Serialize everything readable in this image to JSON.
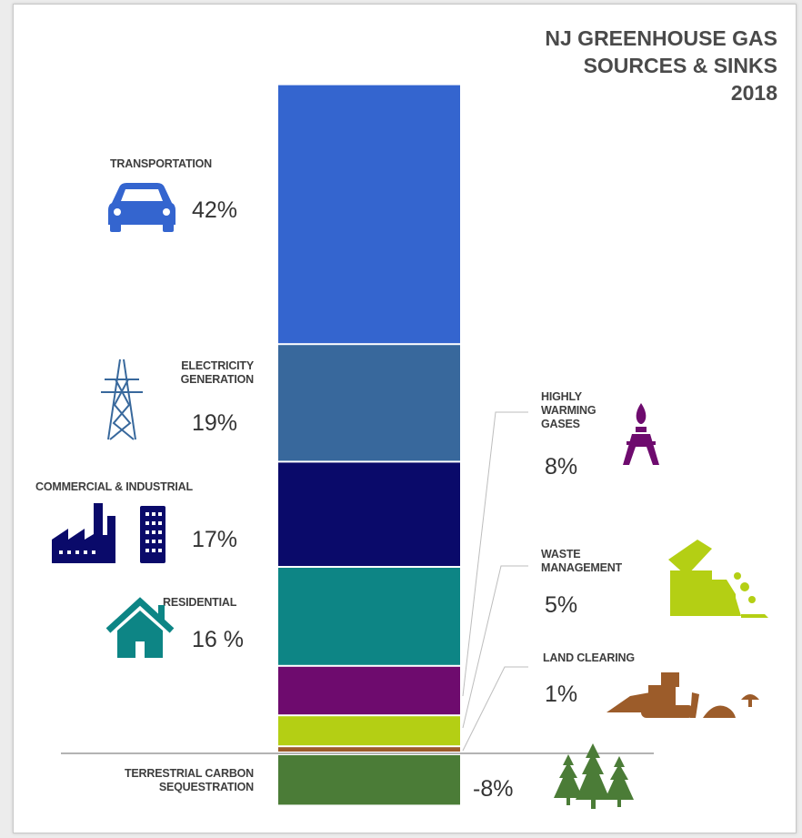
{
  "chart_data": {
    "type": "bar",
    "stacked": true,
    "title": [
      "NJ GREENHOUSE GAS",
      "SOURCES & SINKS",
      "2018"
    ],
    "unit": "%",
    "series": [
      {
        "name": "TRANSPORTATION",
        "lines": [
          "TRANSPORTATION"
        ],
        "value": 42,
        "label": "42%",
        "color": "#3465cf",
        "icon": "car-icon"
      },
      {
        "name": "ELECTRICITY GENERATION",
        "lines": [
          "ELECTRICITY",
          "GENERATION"
        ],
        "value": 19,
        "label": "19%",
        "color": "#38689c",
        "icon": "transmission-tower-icon"
      },
      {
        "name": "COMMERCIAL & INDUSTRIAL",
        "lines": [
          "COMMERCIAL & INDUSTRIAL"
        ],
        "value": 17,
        "label": "17%",
        "color": "#0a0a6a",
        "icon": "factory-building-icon"
      },
      {
        "name": "RESIDENTIAL",
        "lines": [
          "RESIDENTIAL"
        ],
        "value": 16,
        "label": "16 %",
        "color": "#0d8585",
        "icon": "house-icon"
      },
      {
        "name": "HIGHLY WARMING GASES",
        "lines": [
          "HIGHLY",
          "WARMING",
          "GASES"
        ],
        "value": 8,
        "label": "8%",
        "color": "#6e0b6e",
        "icon": "gas-tower-icon"
      },
      {
        "name": "WASTE MANAGEMENT",
        "lines": [
          "WASTE",
          "MANAGEMENT"
        ],
        "value": 5,
        "label": "5%",
        "color": "#b4cf14",
        "icon": "dump-truck-icon"
      },
      {
        "name": "LAND CLEARING",
        "lines": [
          "LAND CLEARING"
        ],
        "value": 1,
        "label": "1%",
        "color": "#9c5c2a",
        "icon": "bulldozer-icon"
      },
      {
        "name": "TERRESTRIAL CARBON SEQUESTRATION",
        "lines": [
          "TERRESTRIAL CARBON",
          "SEQUESTRATION"
        ],
        "value": -8,
        "label": "-8%",
        "color": "#4b7c37",
        "icon": "trees-icon"
      }
    ]
  }
}
